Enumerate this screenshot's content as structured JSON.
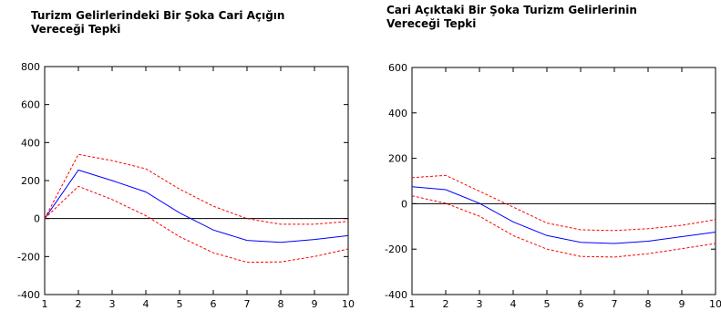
{
  "chart_data": [
    {
      "type": "line",
      "title": "Turizm Gelirlerindeki Bir Şoka Cari Açığın\nVereceği Tepki",
      "x": [
        1,
        2,
        3,
        4,
        5,
        6,
        7,
        8,
        9,
        10
      ],
      "xlim": [
        1,
        10
      ],
      "ylim": [
        -400,
        800
      ],
      "yticks": [
        -400,
        -200,
        0,
        200,
        400,
        600,
        800
      ],
      "zero_line": true,
      "grid": false,
      "series": [
        {
          "values": [
            0,
            255,
            200,
            140,
            30,
            -60,
            -115,
            -125,
            -110,
            -90
          ],
          "color": "#0000ff",
          "style": "solid"
        },
        {
          "values": [
            0,
            338,
            305,
            262,
            155,
            65,
            0,
            -30,
            -30,
            -15
          ],
          "color": "#ff0000",
          "style": "dashed"
        },
        {
          "values": [
            0,
            170,
            100,
            15,
            -95,
            -180,
            -230,
            -228,
            -200,
            -160
          ],
          "color": "#ff0000",
          "style": "dashed"
        }
      ]
    },
    {
      "type": "line",
      "title": "Cari Açıktaki Bir Şoka Turizm Gelirlerinin\nVereceği Tepki",
      "x": [
        1,
        2,
        3,
        4,
        5,
        6,
        7,
        8,
        9,
        10
      ],
      "xlim": [
        1,
        10
      ],
      "ylim": [
        -400,
        600
      ],
      "yticks": [
        -400,
        -200,
        0,
        200,
        400,
        600
      ],
      "zero_line": true,
      "grid": false,
      "series": [
        {
          "values": [
            75,
            62,
            2,
            -80,
            -140,
            -170,
            -175,
            -165,
            -145,
            -125
          ],
          "color": "#0000ff",
          "style": "solid"
        },
        {
          "values": [
            115,
            125,
            55,
            -15,
            -85,
            -115,
            -118,
            -110,
            -95,
            -70
          ],
          "color": "#ff0000",
          "style": "dashed"
        },
        {
          "values": [
            35,
            2,
            -55,
            -140,
            -200,
            -232,
            -235,
            -220,
            -198,
            -175
          ],
          "color": "#ff0000",
          "style": "dashed"
        }
      ]
    }
  ]
}
